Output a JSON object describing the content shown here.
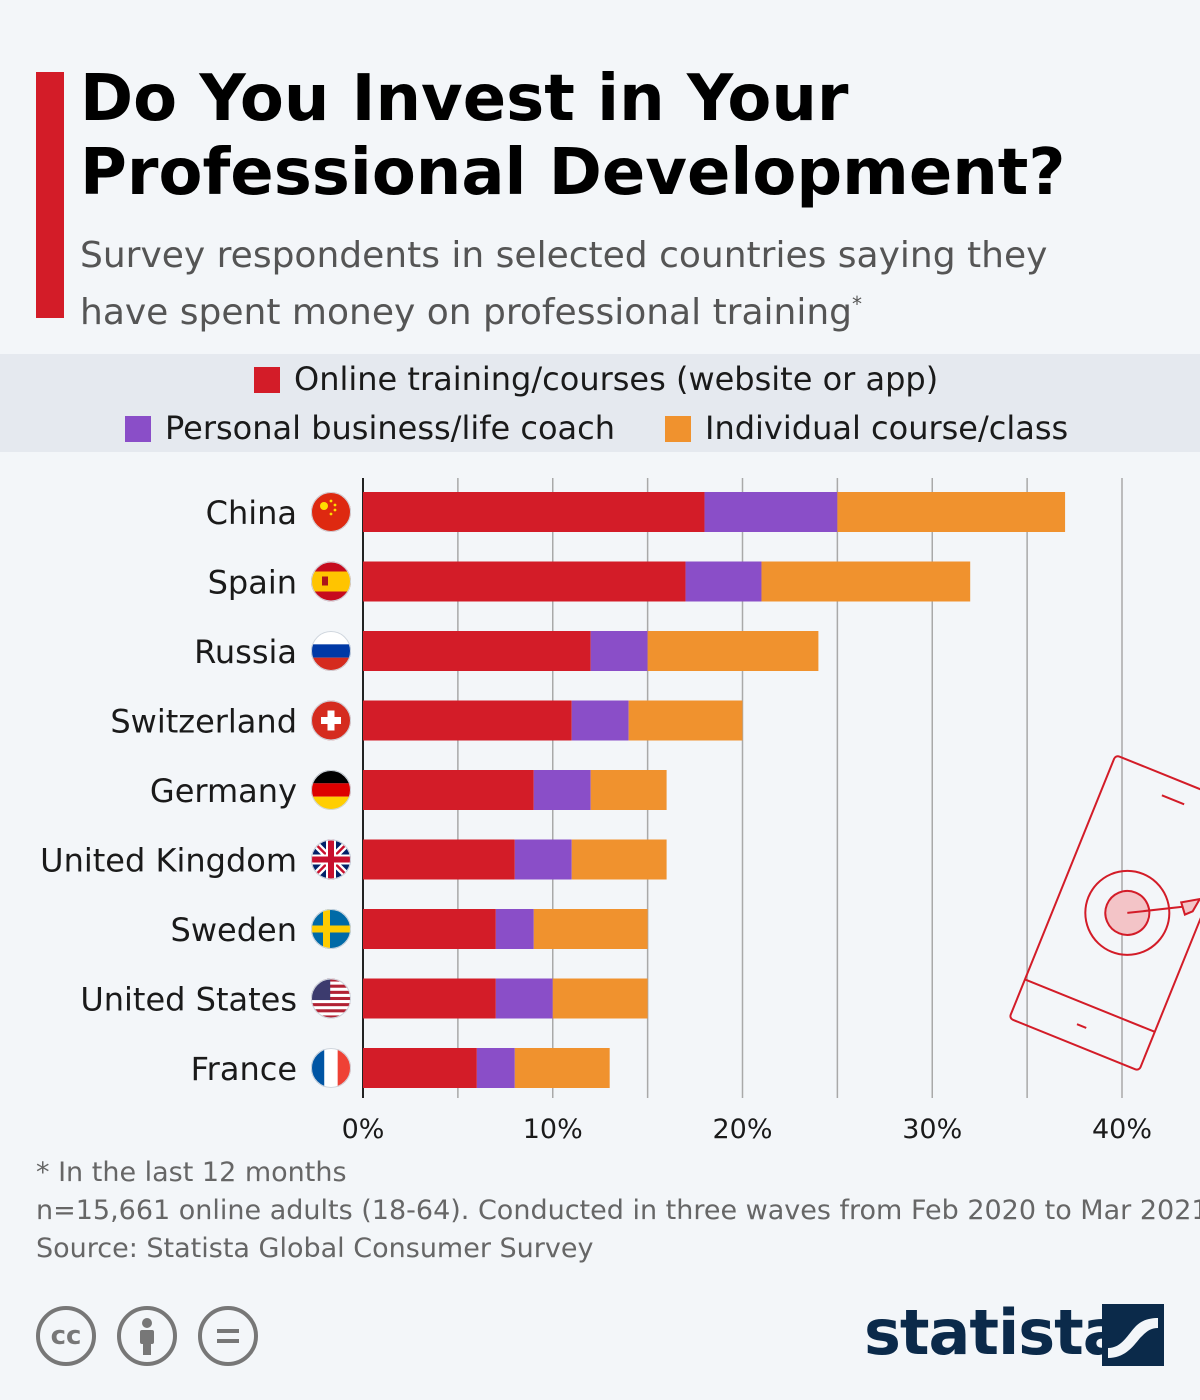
{
  "header": {
    "title": "Do You Invest in Your Professional Development?",
    "subtitle": "Survey respondents in selected countries saying they have spent money on professional training",
    "subtitle_mark": "*"
  },
  "colors": {
    "accent": "#d31c28",
    "online": "#d31c28",
    "coach": "#8a4ec8",
    "course": "#f0922e",
    "background": "#f3f6f9",
    "legend_band": "#e5e9ef",
    "brand": "#0b2a4a"
  },
  "chart_data": {
    "type": "bar",
    "orientation": "horizontal",
    "stacked": true,
    "categories": [
      "China",
      "Spain",
      "Russia",
      "Switzerland",
      "Germany",
      "United Kingdom",
      "Sweden",
      "United States",
      "France"
    ],
    "series": [
      {
        "name": "Online training/courses (website or app)",
        "color": "#d31c28",
        "values": [
          18,
          17,
          12,
          11,
          9,
          8,
          7,
          7,
          6
        ]
      },
      {
        "name": "Personal business/life coach",
        "color": "#8a4ec8",
        "values": [
          7,
          4,
          3,
          3,
          3,
          3,
          2,
          3,
          2
        ]
      },
      {
        "name": "Individual course/class",
        "color": "#f0922e",
        "values": [
          12,
          11,
          9,
          6,
          4,
          5,
          6,
          5,
          5
        ]
      }
    ],
    "xlim": [
      0,
      40
    ],
    "xticks": [
      "0%",
      "10%",
      "20%",
      "30%",
      "40%"
    ],
    "tick_values": [
      0,
      10,
      20,
      30,
      40
    ],
    "grid": true,
    "legend_position": "top",
    "flag_icons": [
      "flag-china-icon",
      "flag-spain-icon",
      "flag-russia-icon",
      "flag-switzerland-icon",
      "flag-germany-icon",
      "flag-uk-icon",
      "flag-sweden-icon",
      "flag-usa-icon",
      "flag-france-icon"
    ]
  },
  "footer": {
    "note": "* In the last 12 months",
    "sample": "n=15,661 online adults (18-64). Conducted in three waves from Feb 2020 to Mar 2021.",
    "source": "Source: Statista Global Consumer Survey",
    "license_icons": [
      "cc-icon",
      "by-icon",
      "nd-icon"
    ],
    "logo_text": "statista"
  }
}
